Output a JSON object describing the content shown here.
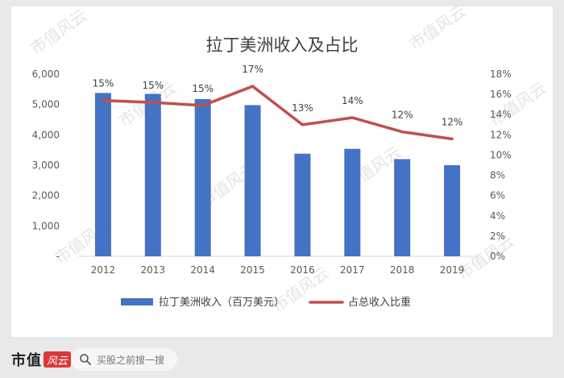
{
  "watermark": "市值风云",
  "footer": {
    "brand_text": "市值",
    "brand_badge": "风云",
    "search_placeholder": "买股之前搜一搜"
  },
  "chart_data": {
    "type": "bar+line",
    "title": "拉丁美洲收入及占比",
    "categories": [
      "2012",
      "2013",
      "2014",
      "2015",
      "2016",
      "2017",
      "2018",
      "2019"
    ],
    "series": [
      {
        "name": "拉丁美洲收入（百万美元）",
        "type": "bar",
        "axis": "left",
        "color": "#4472c4",
        "values": [
          5380,
          5350,
          5180,
          4980,
          3380,
          3540,
          3200,
          3000
        ]
      },
      {
        "name": "占总收入比重",
        "type": "line",
        "axis": "right",
        "color": "#c0504d",
        "values": [
          15.4,
          15.2,
          14.9,
          16.8,
          13.0,
          13.7,
          12.3,
          11.6
        ],
        "data_labels": [
          "15%",
          "15%",
          "15%",
          "17%",
          "13%",
          "14%",
          "12%",
          "12%"
        ]
      }
    ],
    "y_left": {
      "min": 0,
      "max": 6000,
      "ticks": [
        "-",
        "1,000",
        "2,000",
        "3,000",
        "4,000",
        "5,000",
        "6,000"
      ]
    },
    "y_right": {
      "min": 0,
      "max": 18,
      "ticks": [
        "0%",
        "2%",
        "4%",
        "6%",
        "8%",
        "10%",
        "12%",
        "14%",
        "16%",
        "18%"
      ]
    },
    "grid": false,
    "legend": "bottom"
  }
}
